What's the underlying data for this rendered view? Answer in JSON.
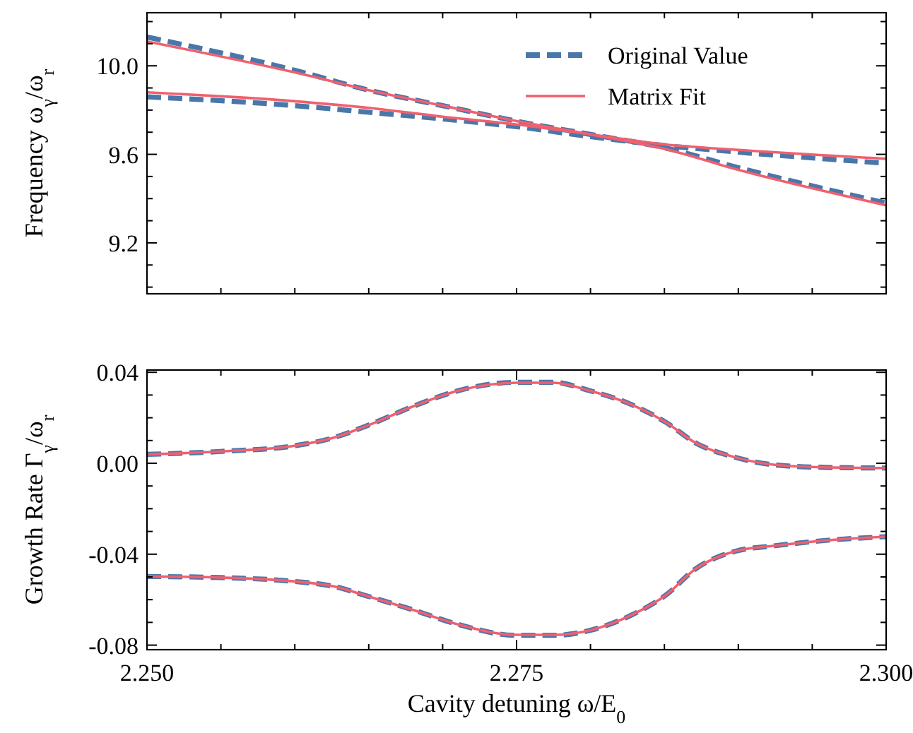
{
  "chart_data": [
    {
      "type": "line",
      "ylabel": "Frequency ω$_{γ}$/ω$_{r}$",
      "x": [
        2.25,
        2.26,
        2.265,
        2.27,
        2.275,
        2.28,
        2.285,
        2.29,
        2.3
      ],
      "series": [
        {
          "name": "Original Value",
          "color": "#4a77aa",
          "line_style": "dashed",
          "values": [
            10.13,
            9.98,
            9.89,
            9.82,
            9.75,
            9.69,
            9.63,
            9.54,
            9.38
          ]
        },
        {
          "color": "#4a77aa",
          "line_style": "dashed",
          "values": [
            9.86,
            9.82,
            9.79,
            9.76,
            9.725,
            9.68,
            9.64,
            9.61,
            9.56
          ]
        },
        {
          "name": "Matrix Fit",
          "color": "#f0606e",
          "line_style": "solid",
          "values": [
            10.11,
            9.97,
            9.89,
            9.82,
            9.75,
            9.69,
            9.625,
            9.53,
            9.37
          ]
        },
        {
          "color": "#f0606e",
          "line_style": "solid",
          "values": [
            9.88,
            9.84,
            9.81,
            9.77,
            9.735,
            9.69,
            9.645,
            9.62,
            9.58
          ]
        }
      ],
      "xlim": [
        2.25,
        2.3
      ],
      "ylim": [
        8.97,
        10.24
      ],
      "xticks": [
        {
          "value": 2.25,
          "label": null
        },
        {
          "value": 2.255,
          "label": null
        },
        {
          "value": 2.26,
          "label": null
        },
        {
          "value": 2.265,
          "label": null
        },
        {
          "value": 2.27,
          "label": null
        },
        {
          "value": 2.275,
          "label": null
        },
        {
          "value": 2.28,
          "label": null
        },
        {
          "value": 2.285,
          "label": null
        },
        {
          "value": 2.29,
          "label": null
        },
        {
          "value": 2.295,
          "label": null
        },
        {
          "value": 2.3,
          "label": null
        }
      ],
      "yticks": [
        {
          "value": 9.0,
          "label": null
        },
        {
          "value": 9.1,
          "label": null
        },
        {
          "value": 9.2,
          "label": "9.2"
        },
        {
          "value": 9.3,
          "label": null
        },
        {
          "value": 9.4,
          "label": null
        },
        {
          "value": 9.5,
          "label": null
        },
        {
          "value": 9.6,
          "label": "9.6"
        },
        {
          "value": 9.7,
          "label": null
        },
        {
          "value": 9.8,
          "label": null
        },
        {
          "value": 9.9,
          "label": null
        },
        {
          "value": 10.0,
          "label": "10.0"
        },
        {
          "value": 10.1,
          "label": null
        },
        {
          "value": 10.2,
          "label": null
        }
      ],
      "tick_labels": "y",
      "legend": "top right",
      "grid": false
    },
    {
      "type": "line",
      "xlabel": "Cavity detuning ω/E$_{0}$",
      "ylabel": "Growth Rate Γ$_{γ}$/ω$_{r}$",
      "x": [
        2.25,
        2.255,
        2.26,
        2.2625,
        2.265,
        2.268,
        2.2711,
        2.275,
        2.2775,
        2.2799,
        2.2827,
        2.2851,
        2.2871,
        2.2898,
        2.2926,
        2.2958,
        2.3
      ],
      "series": [
        {
          "color": "#4a77aa",
          "line_style": "dashed",
          "values": [
            0.0039,
            0.0052,
            0.0077,
            0.011,
            0.0168,
            0.025,
            0.032,
            0.0356,
            0.0356,
            0.032,
            0.026,
            0.018,
            0.009,
            0.0026,
            -0.0008,
            -0.0018,
            -0.0021
          ]
        },
        {
          "color": "#4a77aa",
          "line_style": "dashed",
          "values": [
            -0.0498,
            -0.0503,
            -0.052,
            -0.054,
            -0.0586,
            -0.0645,
            -0.071,
            -0.0757,
            -0.0757,
            -0.0736,
            -0.067,
            -0.058,
            -0.0465,
            -0.0387,
            -0.0362,
            -0.034,
            -0.0323
          ]
        },
        {
          "color": "#f0606e",
          "line_style": "solid",
          "values": [
            0.0039,
            0.0052,
            0.0077,
            0.011,
            0.0168,
            0.025,
            0.032,
            0.0354,
            0.0354,
            0.032,
            0.026,
            0.018,
            0.009,
            0.0026,
            -0.0008,
            -0.0018,
            -0.0021
          ]
        },
        {
          "color": "#f0606e",
          "line_style": "solid",
          "values": [
            -0.0498,
            -0.0503,
            -0.052,
            -0.054,
            -0.0586,
            -0.0645,
            -0.071,
            -0.0755,
            -0.0755,
            -0.0736,
            -0.067,
            -0.058,
            -0.0465,
            -0.0387,
            -0.0362,
            -0.034,
            -0.0323
          ]
        }
      ],
      "xlim": [
        2.25,
        2.3
      ],
      "ylim": [
        -0.082,
        0.041
      ],
      "xticks": [
        {
          "value": 2.25,
          "label": "2.250"
        },
        {
          "value": 2.255,
          "label": null
        },
        {
          "value": 2.26,
          "label": null
        },
        {
          "value": 2.265,
          "label": null
        },
        {
          "value": 2.27,
          "label": null
        },
        {
          "value": 2.275,
          "label": "2.275"
        },
        {
          "value": 2.28,
          "label": null
        },
        {
          "value": 2.285,
          "label": null
        },
        {
          "value": 2.29,
          "label": null
        },
        {
          "value": 2.295,
          "label": null
        },
        {
          "value": 2.3,
          "label": "2.300"
        }
      ],
      "yticks": [
        {
          "value": -0.08,
          "label": "-0.08"
        },
        {
          "value": -0.07,
          "label": null
        },
        {
          "value": -0.06,
          "label": null
        },
        {
          "value": -0.05,
          "label": null
        },
        {
          "value": -0.04,
          "label": "-0.04"
        },
        {
          "value": -0.03,
          "label": null
        },
        {
          "value": -0.02,
          "label": null
        },
        {
          "value": -0.01,
          "label": null
        },
        {
          "value": 0.0,
          "label": "0.00"
        },
        {
          "value": 0.01,
          "label": null
        },
        {
          "value": 0.02,
          "label": null
        },
        {
          "value": 0.03,
          "label": null
        },
        {
          "value": 0.04,
          "label": "0.04"
        }
      ],
      "grid": false
    }
  ]
}
